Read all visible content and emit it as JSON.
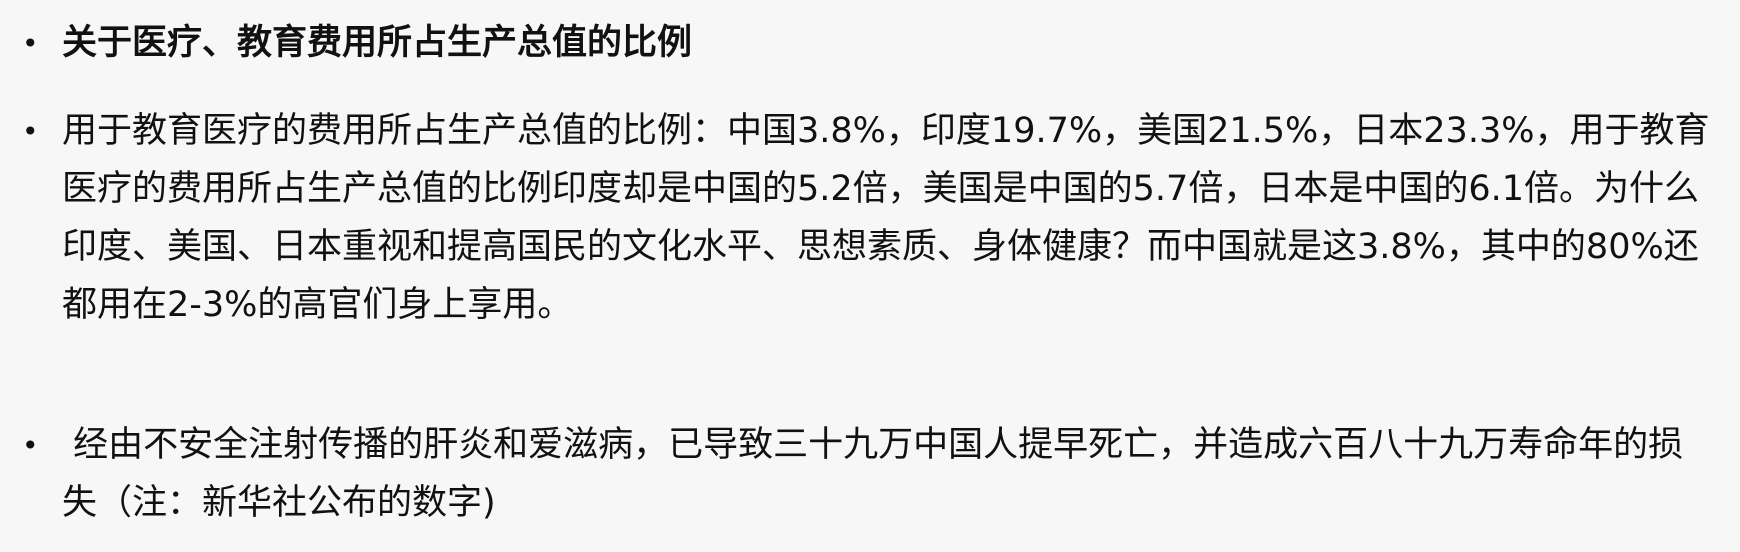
{
  "bullets": [
    {
      "marker": "•",
      "text": "关于医疗、教育费用所占生产总值的比例"
    },
    {
      "marker": "•",
      "text": "用于教育医疗的费用所占生产总值的比例：中国3.8%，印度19.7%，美国21.5%，日本23.3%，用于教育医疗的费用所占生产总值的比例印度却是中国的5.2倍，美国是中国的5.7倍，日本是中国的6.1倍。为什么印度、美国、日本重视和提高国民的文化水平、思想素质、身体健康？而中国就是这3.8%，其中的80%还都用在2-3%的高官们身上享用。"
    },
    {
      "marker": "•",
      "text": " 经由不安全注射传播的肝炎和爱滋病，已导致三十九万中国人提早死亡，并造成六百八十九万寿命年的损失（注：新华社公布的数字)"
    }
  ]
}
